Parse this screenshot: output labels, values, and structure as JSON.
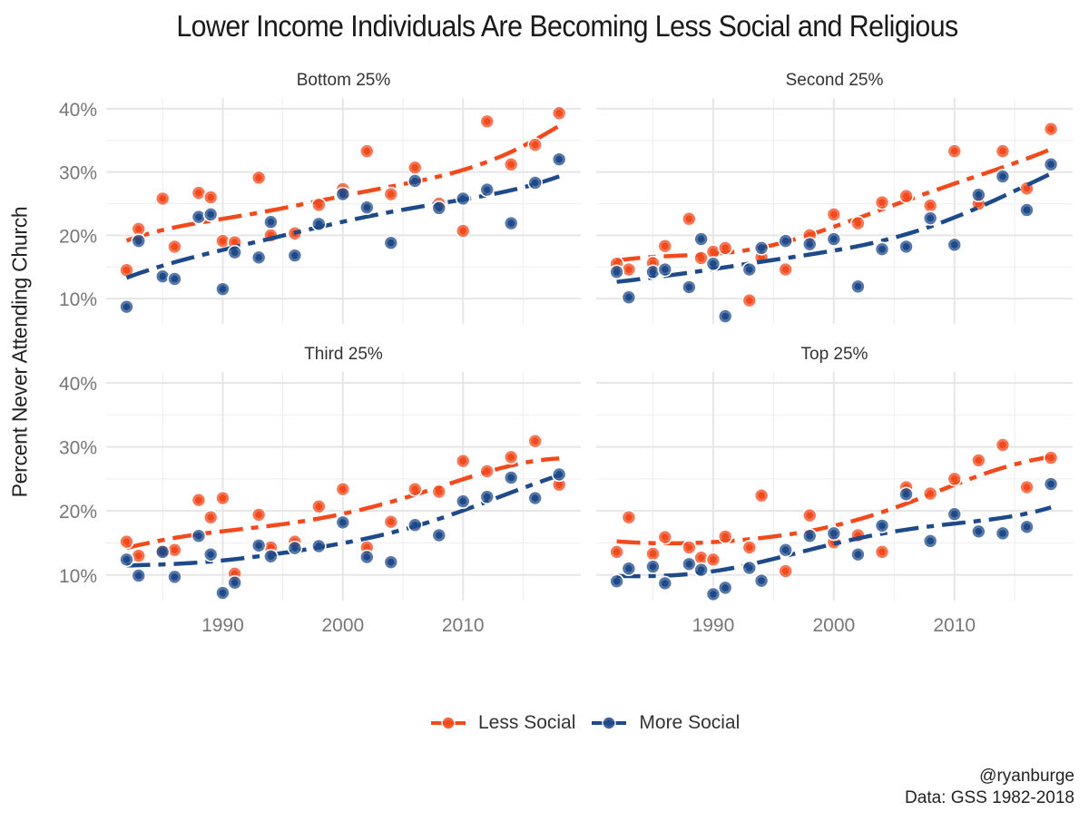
{
  "chart_data": {
    "type": "scatter",
    "title": "Lower Income Individuals Are Becoming Less Social and Religious",
    "xlabel": "",
    "ylabel": "Percent Never Attending Church",
    "xlim": [
      1980.3,
      2019.8
    ],
    "ylim": [
      6,
      41.7
    ],
    "x_ticks": [
      1990,
      2000,
      2010
    ],
    "x_tick_labels": [
      "1990",
      "2000",
      "2010"
    ],
    "y_ticks": [
      10,
      20,
      30,
      40
    ],
    "y_tick_labels": [
      "10%",
      "20%",
      "30%",
      "40%"
    ],
    "grid": true,
    "legend_position": "bottom",
    "trend": "loess smooth, dashed",
    "series_meta": [
      {
        "name": "Less Social",
        "color": "#f24a1d"
      },
      {
        "name": "More Social",
        "color": "#1f4a8a"
      }
    ],
    "x": [
      1982,
      1983,
      1985,
      1986,
      1988,
      1989,
      1990,
      1991,
      1993,
      1994,
      1996,
      1998,
      2000,
      2002,
      2004,
      2006,
      2008,
      2010,
      2012,
      2014,
      2016,
      2018
    ],
    "panels": [
      {
        "label": "Bottom 25%",
        "series": [
          {
            "name": "Less Social",
            "values": [
              14.5,
              21.0,
              25.8,
              18.2,
              26.7,
              26.0,
              19.1,
              18.9,
              29.1,
              20.0,
              20.3,
              24.8,
              27.3,
              33.3,
              26.5,
              30.7,
              25.0,
              20.7,
              38.0,
              31.2,
              34.3,
              39.3
            ]
          },
          {
            "name": "More Social",
            "values": [
              8.7,
              19.1,
              13.5,
              13.1,
              22.9,
              23.3,
              11.5,
              17.3,
              16.5,
              22.1,
              16.8,
              21.8,
              26.5,
              24.4,
              18.8,
              28.6,
              24.3,
              25.8,
              27.2,
              21.9,
              28.3,
              32.0
            ]
          }
        ]
      },
      {
        "label": "Second 25%",
        "series": [
          {
            "name": "Less Social",
            "values": [
              15.5,
              14.6,
              15.6,
              18.3,
              22.6,
              16.4,
              17.4,
              18.0,
              9.7,
              16.5,
              14.6,
              20.0,
              23.3,
              21.9,
              25.2,
              26.2,
              24.7,
              33.3,
              25.0,
              33.3,
              27.4,
              36.8
            ]
          },
          {
            "name": "More Social",
            "values": [
              14.2,
              10.2,
              14.2,
              14.6,
              11.8,
              19.4,
              15.5,
              7.2,
              14.6,
              18.0,
              19.1,
              18.6,
              19.4,
              11.9,
              17.8,
              18.2,
              22.7,
              18.5,
              26.4,
              29.3,
              24.0,
              31.2
            ]
          }
        ]
      },
      {
        "label": "Third 25%",
        "series": [
          {
            "name": "Less Social",
            "values": [
              15.2,
              13.0,
              13.8,
              13.9,
              21.7,
              19.0,
              22.0,
              10.2,
              19.4,
              14.3,
              15.2,
              20.7,
              23.4,
              14.3,
              18.3,
              23.4,
              23.0,
              27.8,
              26.2,
              28.4,
              30.9,
              24.1
            ]
          },
          {
            "name": "More Social",
            "values": [
              12.4,
              9.9,
              13.6,
              9.7,
              16.1,
              13.2,
              7.2,
              8.8,
              14.6,
              12.9,
              14.2,
              14.5,
              18.2,
              12.8,
              12.0,
              17.8,
              16.2,
              21.5,
              22.2,
              25.2,
              22.0,
              25.7
            ]
          }
        ]
      },
      {
        "label": "Top 25%",
        "series": [
          {
            "name": "Less Social",
            "values": [
              13.6,
              19.0,
              13.3,
              15.9,
              14.3,
              12.7,
              12.4,
              16.0,
              14.3,
              22.4,
              10.6,
              19.3,
              15.1,
              16.2,
              13.6,
              23.7,
              22.7,
              25.0,
              27.9,
              30.3,
              23.7,
              28.3
            ]
          },
          {
            "name": "More Social",
            "values": [
              9.0,
              11.0,
              11.3,
              8.7,
              11.7,
              10.8,
              7.0,
              8.0,
              11.1,
              9.1,
              13.9,
              16.1,
              16.5,
              13.2,
              17.7,
              22.6,
              15.3,
              19.5,
              16.8,
              16.5,
              17.5,
              24.2
            ]
          }
        ]
      }
    ]
  },
  "legend": {
    "items": [
      {
        "label": "Less Social",
        "color": "#f24a1d"
      },
      {
        "label": "More Social",
        "color": "#1f4a8a"
      }
    ]
  },
  "caption": {
    "line1": "@ryanburge",
    "line2": "Data: GSS 1982-2018"
  }
}
